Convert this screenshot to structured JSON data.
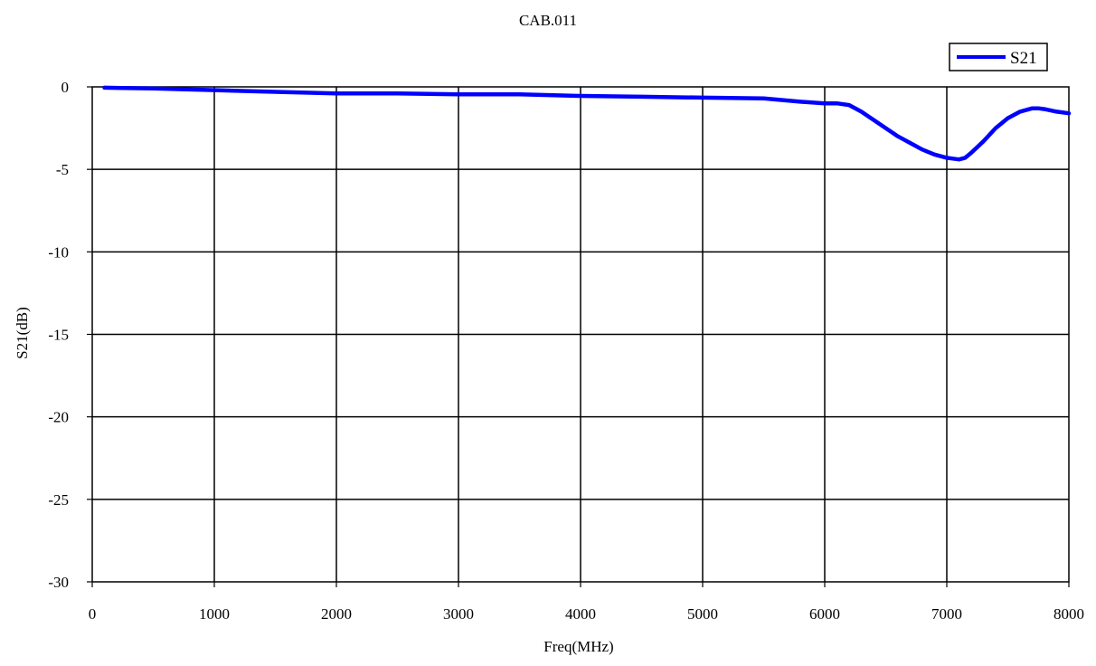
{
  "chart_data": {
    "type": "line",
    "title": "CAB.011",
    "xlabel": "Freq(MHz)",
    "ylabel": "S21(dB)",
    "xlim": [
      0,
      8000
    ],
    "ylim": [
      -30,
      0
    ],
    "x_ticks": [
      0,
      1000,
      2000,
      3000,
      4000,
      5000,
      6000,
      7000,
      8000
    ],
    "y_ticks": [
      0,
      -5,
      -10,
      -15,
      -20,
      -25,
      -30
    ],
    "grid": true,
    "legend": "top-right",
    "colors": {
      "series": "#0000ff",
      "grid": "#000000",
      "axes": "#000000"
    },
    "series": [
      {
        "name": "S21",
        "color": "#0000ff",
        "x": [
          100,
          500,
          1000,
          1500,
          2000,
          2500,
          3000,
          3500,
          4000,
          4500,
          5000,
          5500,
          5800,
          6000,
          6100,
          6200,
          6300,
          6400,
          6500,
          6600,
          6700,
          6800,
          6900,
          7000,
          7050,
          7100,
          7150,
          7200,
          7300,
          7400,
          7500,
          7600,
          7700,
          7750,
          7800,
          7900,
          8000
        ],
        "y": [
          -0.05,
          -0.1,
          -0.2,
          -0.3,
          -0.4,
          -0.4,
          -0.45,
          -0.45,
          -0.55,
          -0.6,
          -0.65,
          -0.7,
          -0.9,
          -1.0,
          -1.0,
          -1.1,
          -1.5,
          -2.0,
          -2.5,
          -3.0,
          -3.4,
          -3.8,
          -4.1,
          -4.3,
          -4.35,
          -4.4,
          -4.3,
          -4.0,
          -3.3,
          -2.5,
          -1.9,
          -1.5,
          -1.3,
          -1.3,
          -1.35,
          -1.5,
          -1.6
        ]
      }
    ]
  }
}
